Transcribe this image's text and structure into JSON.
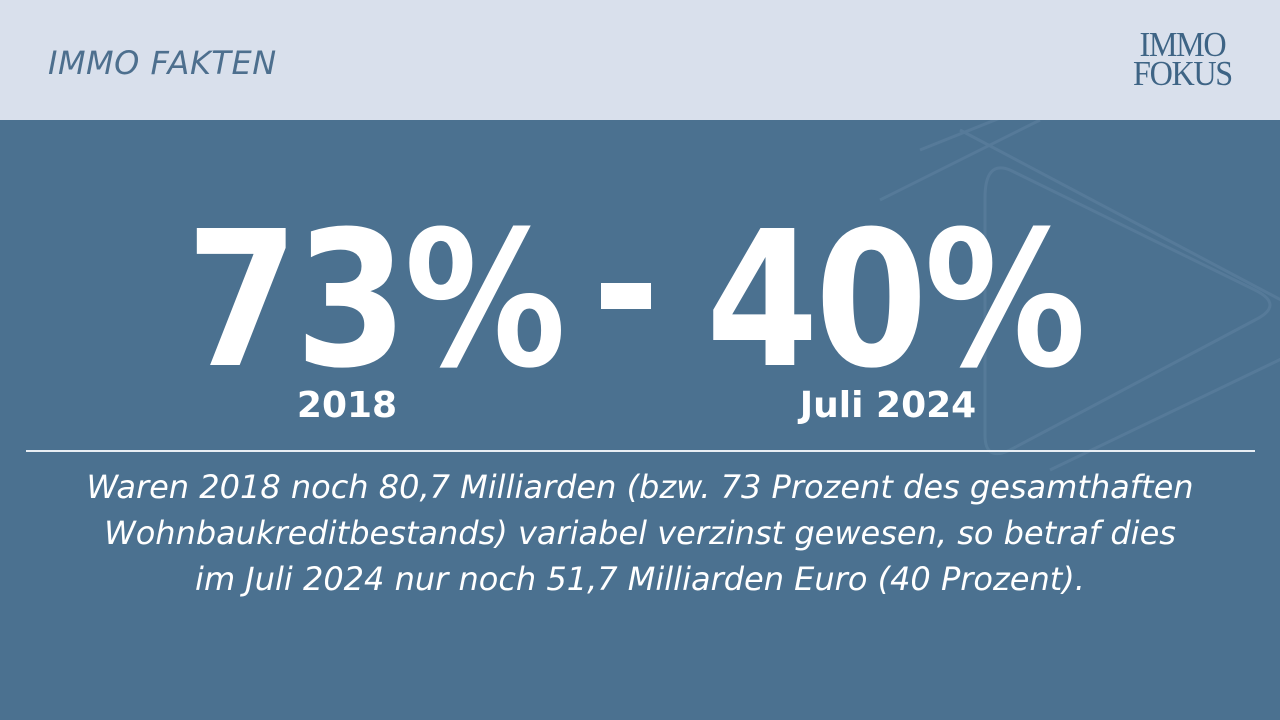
{
  "header": {
    "section_label": "IMMO FAKTEN",
    "logo_line1": "IMMO",
    "logo_line2": "FOKUS"
  },
  "stats": {
    "left_value": "73%",
    "left_caption": "2018",
    "separator": "-",
    "right_value": "40%",
    "right_caption": "Juli 2024"
  },
  "description": {
    "line1": "Waren 2018 noch 80,7 Milliarden (bzw. 73 Prozent des gesamthaften",
    "line2": "Wohnbaukreditbestands) variabel verzinst gewesen, so betraf dies",
    "line3": "im Juli 2024 nur noch 51,7 Milliarden Euro (40 Prozent)."
  },
  "colors": {
    "header_background": "#d9e0ec",
    "main_background": "#4b7190",
    "label_color": "#4d6f8e",
    "logo_color": "#3e6485",
    "text_color": "#ffffff"
  }
}
